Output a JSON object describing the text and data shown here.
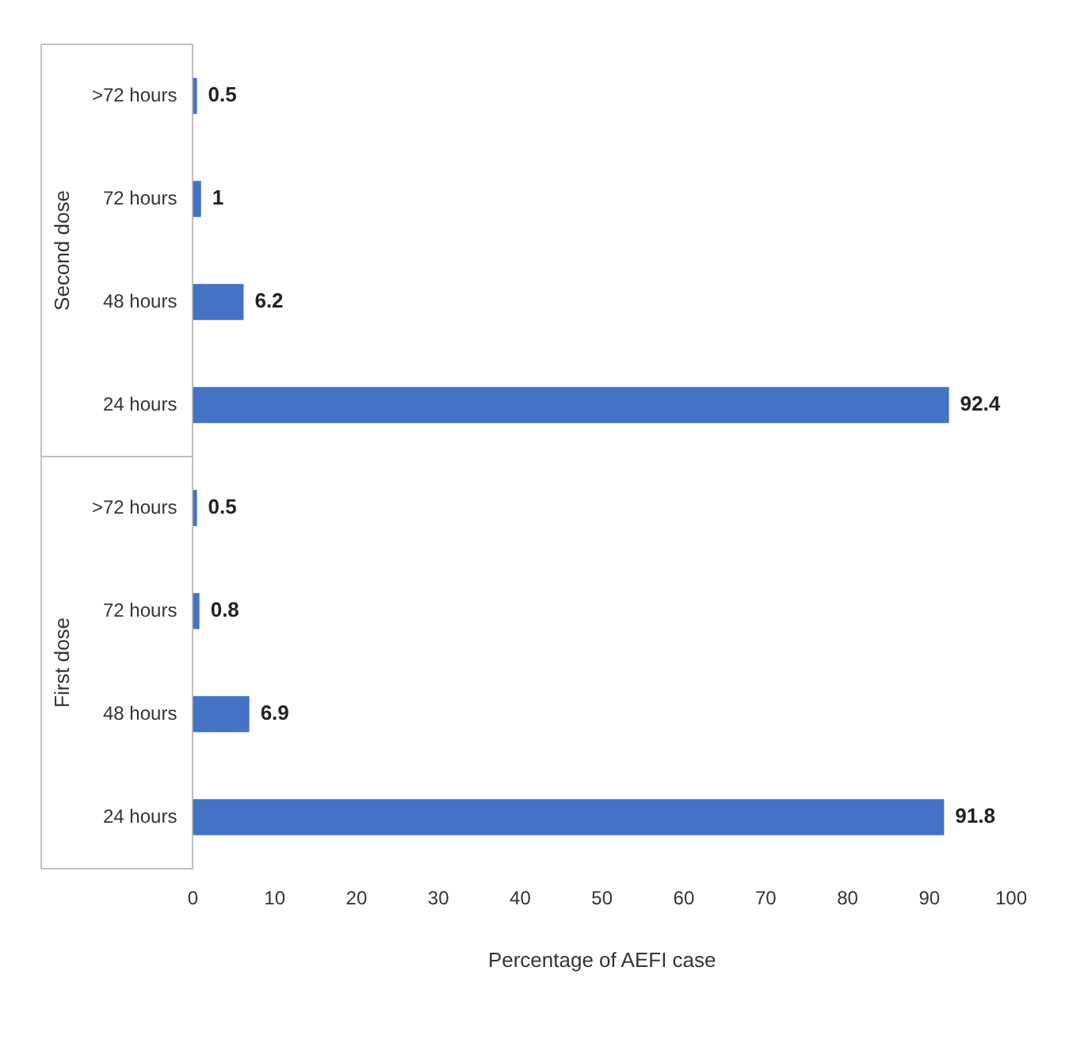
{
  "chart_data": {
    "type": "bar",
    "orientation": "horizontal",
    "categories": [
      ">72 hours",
      "72 hours",
      "48 hours",
      "24 hours",
      ">72 hours",
      "72 hours",
      "48 hours",
      "24 hours"
    ],
    "values": [
      0.5,
      1,
      6.2,
      92.4,
      0.5,
      0.8,
      6.9,
      91.8
    ],
    "color": "#4472c4",
    "xlabel": "Percentage of AEFI case",
    "xlim": [
      0,
      100
    ],
    "xticks": [
      0,
      10,
      20,
      30,
      40,
      50,
      60,
      70,
      80,
      90,
      100
    ],
    "annotations": [
      "Second dose",
      "First dose"
    ],
    "data_labels": true,
    "grid": false,
    "legend": false
  }
}
